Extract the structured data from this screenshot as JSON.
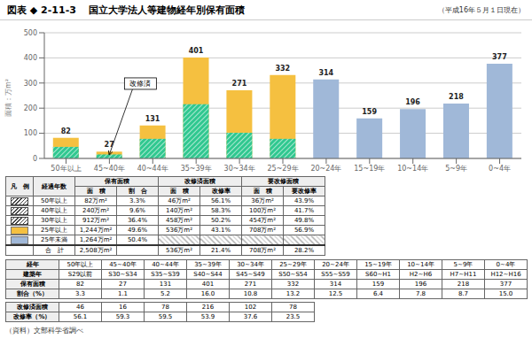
{
  "chart_data": {
    "type": "bar",
    "figure_number": "図表 ◆ 2-11-3",
    "title": "国立大学法人等建物経年別保有面積",
    "subtitle": "（平成16年５月１日現在）",
    "ylabel": "面積：万m²",
    "categories": [
      "50年以上",
      "45~40年",
      "40~44年",
      "35~39年",
      "30~34年",
      "25~29年",
      "20~24年",
      "15~19年",
      "10~14年",
      "5~9年",
      "0~4年"
    ],
    "series": [
      {
        "name": "保有面積",
        "colors": [
          "#f5c040",
          "#f5c040",
          "#f5c040",
          "#f5c040",
          "#f5c040",
          "#f5c040",
          "#a0b8d8",
          "#a0b8d8",
          "#a0b8d8",
          "#a0b8d8",
          "#a0b8d8"
        ],
        "values": [
          82,
          27,
          131,
          401,
          271,
          332,
          314,
          159,
          196,
          218,
          377
        ],
        "data_labels": true
      },
      {
        "name": "改修済",
        "color": "#30c890",
        "values": [
          46,
          16,
          78,
          216,
          102,
          78,
          0,
          0,
          0,
          0,
          0
        ]
      }
    ],
    "ylim": [
      0,
      500
    ],
    "yticks": [
      0,
      100,
      200,
      300,
      400,
      500
    ],
    "grid": true,
    "annotations": [
      {
        "text": "改修済",
        "x": "45~40年",
        "y": 16
      }
    ],
    "legend_table": {
      "header": [
        "凡　例",
        "経過年数",
        "保有面積",
        "改修済面積",
        "要改修面積"
      ],
      "subheader": [
        "面　積",
        "割　合",
        "面　積",
        "改修率",
        "面　積",
        "要改修率"
      ],
      "rows": [
        {
          "marker": "hatch",
          "cells": [
            "50年以上",
            "82万m²",
            "3.3%",
            "46万m²",
            "56.1%",
            "36万m²",
            "43.9%"
          ]
        },
        {
          "marker": "hatch",
          "cells": [
            "40年以上",
            "240万m²",
            "9.6%",
            "140万m²",
            "58.3%",
            "100万m²",
            "41.7%"
          ]
        },
        {
          "marker": "hatch",
          "cells": [
            "30年以上",
            "912万m²",
            "36.4%",
            "458万m²",
            "50.2%",
            "454万m²",
            "49.8%"
          ]
        },
        {
          "color": "#f5c040",
          "cells": [
            "25年以上",
            "1,244万m²",
            "49.6%",
            "536万m²",
            "43.1%",
            "708万m²",
            "56.9%"
          ]
        },
        {
          "color": "#a0b8d8",
          "cells": [
            "25年未満",
            "1,264万m²",
            "50.4%",
            null,
            null,
            null,
            null
          ]
        },
        {
          "cells": [
            "合　計",
            "2,508万m²",
            null,
            "536万m²",
            "21.4%",
            "708万m²",
            "28.2%"
          ]
        }
      ]
    },
    "table1": [
      [
        "経年",
        "50年以上",
        "45~40年",
        "40~44年",
        "35~39年",
        "30~34年",
        "25~29年",
        "20~24年",
        "15~19年",
        "10~14年",
        "5~9年",
        "0~4年"
      ],
      [
        "建築年",
        "S29以前",
        "S30~S34",
        "S35~S39",
        "S40~S44",
        "S45~S49",
        "S50~S54",
        "S55~S59",
        "S60~H1",
        "H2~H6",
        "H7~H11",
        "H12~H16"
      ],
      [
        "保有面積",
        "82",
        "27",
        "131",
        "401",
        "271",
        "332",
        "314",
        "159",
        "196",
        "218",
        "377"
      ],
      [
        "割合（%）",
        "3.3",
        "1.1",
        "5.2",
        "16.0",
        "10.8",
        "13.2",
        "12.5",
        "6.4",
        "7.8",
        "8.7",
        "15.0"
      ]
    ],
    "table2": [
      [
        "改修済面積",
        "46",
        "16",
        "78",
        "216",
        "102",
        "78"
      ],
      [
        "改修率（%）",
        "56.1",
        "59.3",
        "59.5",
        "53.9",
        "37.6",
        "23.5"
      ]
    ],
    "source": "（資料）文部科学省調べ"
  }
}
